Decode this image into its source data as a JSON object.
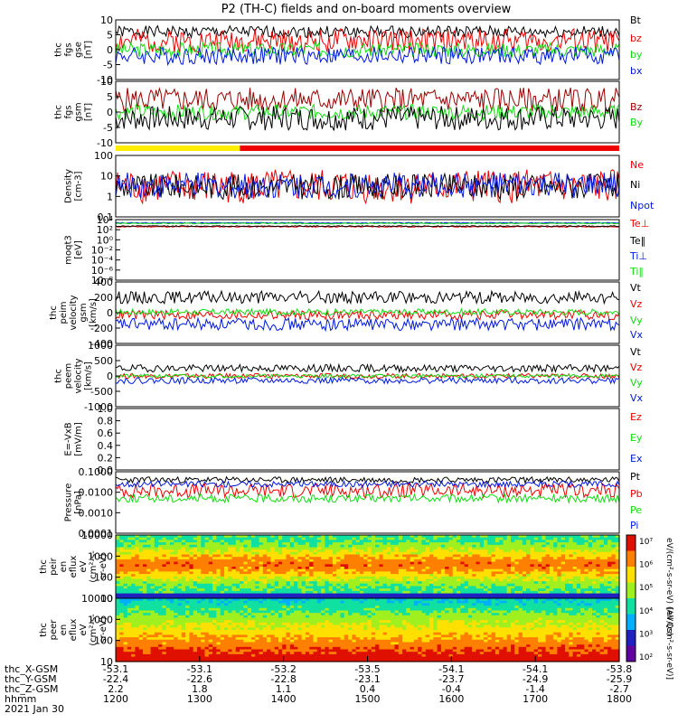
{
  "title": "P2 (TH-C) fields and on-board moments overview",
  "colors": {
    "black": "#000000",
    "red": "#ee0000",
    "green": "#10dd10",
    "blue": "#0018e0",
    "darkred": "#9a0000",
    "yellow": "#ffee00",
    "barred": "#ee0000"
  },
  "chart_data": [
    {
      "id": "fgs-gse",
      "type": "line",
      "ylabel": [
        "thc",
        "fgs",
        "gse",
        "[nT]"
      ],
      "yticks": [
        "10",
        "5",
        "0",
        "-5",
        "-10"
      ],
      "ylim": [
        -10,
        10
      ],
      "series": [
        {
          "name": "Bt",
          "color": "black",
          "base": 6,
          "amp": 2,
          "seed": 1
        },
        {
          "name": "bz",
          "color": "red",
          "base": 3,
          "amp": 4,
          "seed": 2
        },
        {
          "name": "by",
          "color": "green",
          "base": 0,
          "amp": 2.5,
          "seed": 3
        },
        {
          "name": "bx",
          "color": "blue",
          "base": -2,
          "amp": 3,
          "seed": 4
        }
      ]
    },
    {
      "id": "fgs-gsm",
      "type": "line",
      "ylabel": [
        "thc",
        "fgs",
        "gsm",
        "[nT]"
      ],
      "yticks": [
        "10",
        "5",
        "0",
        "-5",
        "-10"
      ],
      "ylim": [
        -10,
        10
      ],
      "series": [
        {
          "name": "Bz",
          "color": "darkred",
          "base": 4,
          "amp": 4,
          "seed": 5
        },
        {
          "name": "By",
          "color": "green",
          "base": 0,
          "amp": 2.5,
          "seed": 6
        },
        {
          "name": "Bx",
          "color": "black",
          "base": -2,
          "amp": 4,
          "seed": 7
        }
      ]
    },
    {
      "id": "density",
      "type": "line",
      "scale": "log",
      "ylabel": [
        "Density",
        "[cm-3]"
      ],
      "yticks": [
        "100",
        "10",
        "1",
        "0.1"
      ],
      "ylim": [
        0.05,
        200
      ],
      "series": [
        {
          "name": "Ne",
          "color": "red",
          "base": 3,
          "amp": 2,
          "seed": 8
        },
        {
          "name": "Ni",
          "color": "black",
          "base": 3,
          "amp": 1.5,
          "seed": 9
        },
        {
          "name": "Npot",
          "color": "blue",
          "base": 3.5,
          "amp": 1.5,
          "seed": 10
        }
      ]
    },
    {
      "id": "moms",
      "type": "line",
      "scale": "log",
      "ylabel": [
        "moqt3",
        "[eV]"
      ],
      "yticks": [
        "10⁴",
        "10²",
        "10⁰",
        "10⁻²",
        "10⁻⁴",
        "10⁻⁶",
        "10⁻⁸"
      ],
      "ylim": [
        1e-09,
        10000.0
      ],
      "series": [
        {
          "name": "Te⊥",
          "color": "red",
          "base": 300,
          "amp": 0.2,
          "seed": 11
        },
        {
          "name": "Te‖",
          "color": "black",
          "base": 400,
          "amp": 0.2,
          "seed": 12
        },
        {
          "name": "Ti⊥",
          "color": "blue",
          "base": 2000,
          "amp": 0.2,
          "seed": 13
        },
        {
          "name": "Ti‖",
          "color": "green",
          "base": 1500,
          "amp": 0.2,
          "seed": 14
        }
      ]
    },
    {
      "id": "peim-vel",
      "type": "line",
      "ylabel": [
        "thc",
        "peim",
        "velocity",
        "gsm",
        "[km/s]"
      ],
      "yticks": [
        "400",
        "200",
        "0",
        "-200",
        "-400"
      ],
      "ylim": [
        -400,
        400
      ],
      "series": [
        {
          "name": "Vt",
          "color": "black",
          "base": 200,
          "amp": 80,
          "seed": 15
        },
        {
          "name": "Vz",
          "color": "red",
          "base": -30,
          "amp": 60,
          "seed": 16
        },
        {
          "name": "Vy",
          "color": "green",
          "base": 10,
          "amp": 40,
          "seed": 17
        },
        {
          "name": "Vx",
          "color": "blue",
          "base": -150,
          "amp": 80,
          "seed": 18
        }
      ]
    },
    {
      "id": "peem-vel",
      "type": "line",
      "ylabel": [
        "thc",
        "peem",
        "velocity",
        "[km/s]"
      ],
      "yticks": [
        "1000",
        "500",
        "0",
        "-500",
        "-1000"
      ],
      "ylim": [
        -1000,
        1000
      ],
      "series": [
        {
          "name": "Vt",
          "color": "black",
          "base": 250,
          "amp": 120,
          "seed": 19
        },
        {
          "name": "Vz",
          "color": "red",
          "base": 0,
          "amp": 80,
          "seed": 20
        },
        {
          "name": "Vy",
          "color": "green",
          "base": 0,
          "amp": 60,
          "seed": 21
        },
        {
          "name": "Vx",
          "color": "blue",
          "base": -150,
          "amp": 100,
          "seed": 22
        }
      ]
    },
    {
      "id": "efield",
      "type": "line",
      "ylabel": [
        "E=-VxB",
        "[mV/m]"
      ],
      "yticks": [
        "1.0",
        "0.8",
        "0.6",
        "0.4",
        "0.2",
        "0.0"
      ],
      "ylim": [
        0,
        1
      ],
      "series": [
        {
          "name": "Ez",
          "color": "red"
        },
        {
          "name": "Ey",
          "color": "green"
        },
        {
          "name": "Ex",
          "color": "blue"
        }
      ]
    },
    {
      "id": "pressure",
      "type": "line",
      "scale": "log",
      "ylabel": [
        "Pressure",
        "[nPa]"
      ],
      "yticks": [
        "0.1000",
        "0.0100",
        "0.0010",
        "0.0001"
      ],
      "ylim": [
        0.0001,
        0.1
      ],
      "series": [
        {
          "name": "Pt",
          "color": "black",
          "base": 0.04,
          "amp": 0.3,
          "seed": 23
        },
        {
          "name": "Pb",
          "color": "red",
          "base": 0.012,
          "amp": 0.7,
          "seed": 24
        },
        {
          "name": "Pe",
          "color": "green",
          "base": 0.005,
          "amp": 0.4,
          "seed": 25
        },
        {
          "name": "Pi",
          "color": "blue",
          "base": 0.025,
          "amp": 0.3,
          "seed": 26
        }
      ]
    },
    {
      "id": "peir-spec",
      "type": "heatmap",
      "scale": "log",
      "ylabel": [
        "thc",
        "peir",
        "en",
        "eflux",
        "eV",
        "(cm²-s-",
        "sr-eV)"
      ],
      "yticks": [
        "10000",
        "1000",
        "100",
        "10"
      ],
      "ylim": [
        5,
        30000
      ]
    },
    {
      "id": "peer-spec",
      "type": "heatmap",
      "scale": "log",
      "ylabel": [
        "thc",
        "peer",
        "en",
        "eflux",
        "eV",
        "(cm²-s-",
        "sr-eV)"
      ],
      "yticks": [
        "10000",
        "1000",
        "100",
        "10"
      ],
      "ylim": [
        5,
        30000
      ]
    }
  ],
  "colorbar": {
    "ticks": [
      "10⁷",
      "10⁶",
      "10⁵",
      "10⁴",
      "10³",
      "10²"
    ],
    "label_top": "eV/(cm²-s-sr-eV)  (All Qs)",
    "label_bottom": "[eV/(cm²-s-sr-eV)]"
  },
  "state_bar": {
    "segments": [
      {
        "color": "yellow",
        "from": 1200,
        "to": 1348
      },
      {
        "color": "barred",
        "from": 1348,
        "to": 1800
      }
    ]
  },
  "xaxis": {
    "rows": [
      {
        "label": "thc_X-GSM",
        "values": [
          "-53.1",
          "-53.1",
          "-53.2",
          "-53.5",
          "-54.1",
          "-54.1",
          "-53.8"
        ]
      },
      {
        "label": "thc_Y-GSM",
        "values": [
          "-22.4",
          "-22.6",
          "-22.8",
          "-23.1",
          "-23.7",
          "-24.9",
          "-25.9"
        ]
      },
      {
        "label": "thc_Z-GSM",
        "values": [
          "2.2",
          "1.8",
          "1.1",
          "0.4",
          "-0.4",
          "-1.4",
          "-2.7"
        ]
      },
      {
        "label": "hhmm",
        "values": [
          "1200",
          "1300",
          "1400",
          "1500",
          "1600",
          "1700",
          "1800"
        ]
      }
    ],
    "date": "2021 Jan 30"
  }
}
